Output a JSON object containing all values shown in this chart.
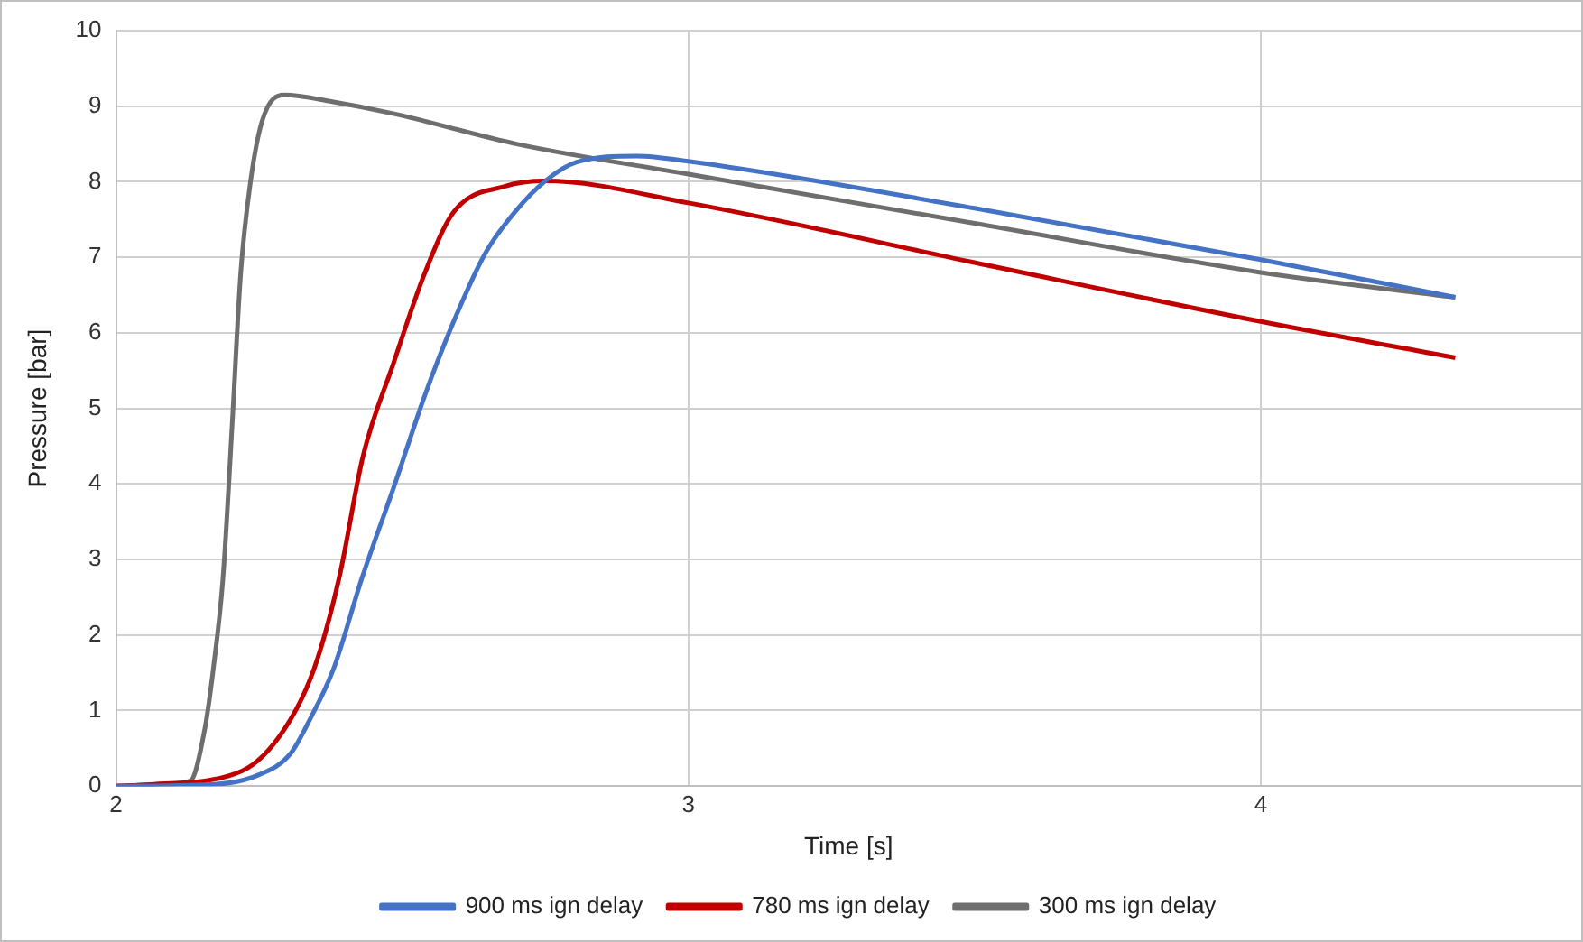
{
  "chart_data": {
    "type": "line",
    "xlabel": "Time [s]",
    "ylabel": "Pressure [bar]",
    "xlim": [
      2,
      4.56
    ],
    "xticks": [
      2,
      3,
      4
    ],
    "ylim": [
      0,
      10
    ],
    "yticks": [
      0,
      1,
      2,
      3,
      4,
      5,
      6,
      7,
      8,
      9,
      10
    ],
    "grid": true,
    "legend": "bottom",
    "marker": "none",
    "line_style": "solid",
    "series": [
      {
        "name": "900 ms ign delay",
        "color": "#4472c4",
        "x": [
          2,
          2.167,
          2.25,
          2.305,
          2.34,
          2.38,
          2.43,
          2.486,
          2.54,
          2.59,
          2.645,
          2.697,
          2.75,
          2.805,
          2.91,
          3,
          3.5,
          4,
          4.34
        ],
        "values": [
          0,
          0.02,
          0.15,
          0.43,
          0.9,
          1.55,
          2.76,
          3.97,
          5.18,
          6.15,
          7.05,
          7.6,
          8.01,
          8.26,
          8.34,
          8.27,
          7.65,
          6.97,
          6.47
        ]
      },
      {
        "name": "780 ms ign delay",
        "color": "#c00000",
        "x": [
          2,
          2.06,
          2.22,
          2.294,
          2.346,
          2.39,
          2.432,
          2.485,
          2.54,
          2.59,
          2.68,
          2.75,
          3,
          3.5,
          4,
          4.34
        ],
        "values": [
          0,
          0.02,
          0.2,
          0.75,
          1.55,
          2.76,
          4.38,
          5.6,
          6.8,
          7.6,
          7.94,
          8.01,
          7.72,
          6.93,
          6.15,
          5.67
        ]
      },
      {
        "name": "300 ms ign delay",
        "color": "#6e6e6e",
        "x": [
          2,
          2.08,
          2.13,
          2.155,
          2.17,
          2.187,
          2.203,
          2.218,
          2.235,
          2.256,
          2.294,
          2.378,
          2.486,
          2.7,
          3,
          3.5,
          4,
          4.34
        ],
        "values": [
          0,
          0.02,
          0.07,
          0.75,
          1.55,
          2.76,
          4.79,
          6.8,
          8.0,
          8.82,
          9.15,
          9.06,
          8.9,
          8.5,
          8.1,
          7.45,
          6.8,
          6.47
        ]
      }
    ]
  }
}
